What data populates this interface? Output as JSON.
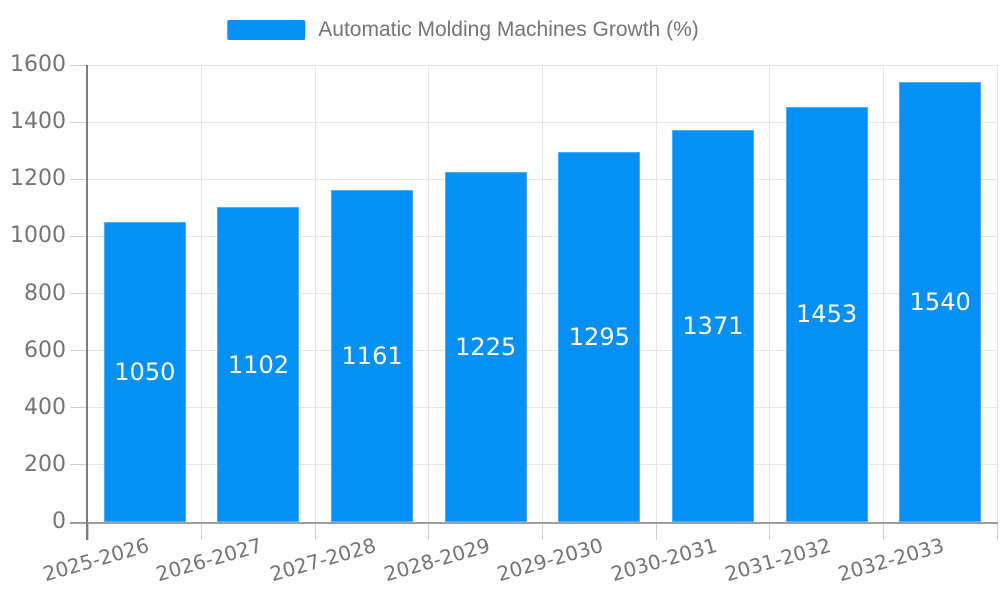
{
  "chart_data": {
    "type": "bar",
    "title": "Automatic Molding Machines Growth (%)",
    "categories": [
      "2025-2026",
      "2026-2027",
      "2027-2028",
      "2028-2029",
      "2029-2030",
      "2030-2031",
      "2031-2032",
      "2032-2033"
    ],
    "values": [
      1050,
      1102,
      1161,
      1225,
      1295,
      1371,
      1453,
      1540
    ],
    "xlabel": "",
    "ylabel": "",
    "ylim": [
      0,
      1600
    ],
    "yticks": [
      0,
      200,
      400,
      600,
      800,
      1000,
      1200,
      1400,
      1600
    ],
    "grid": true,
    "value_labels_shown": true,
    "value_label_position": "inside-middle",
    "legend": {
      "label": "Automatic Molding Machines Growth (%)",
      "position": "top-center"
    },
    "colors": {
      "bar": "#0490f5",
      "bar_value_label": "#ffffff",
      "axis_text": "#757575",
      "gridline": "#e6e6e6",
      "tick": "#cfcfcf",
      "y_axis_line": "#7d7d7d",
      "x_axis_line": "#9e9e9e"
    }
  }
}
